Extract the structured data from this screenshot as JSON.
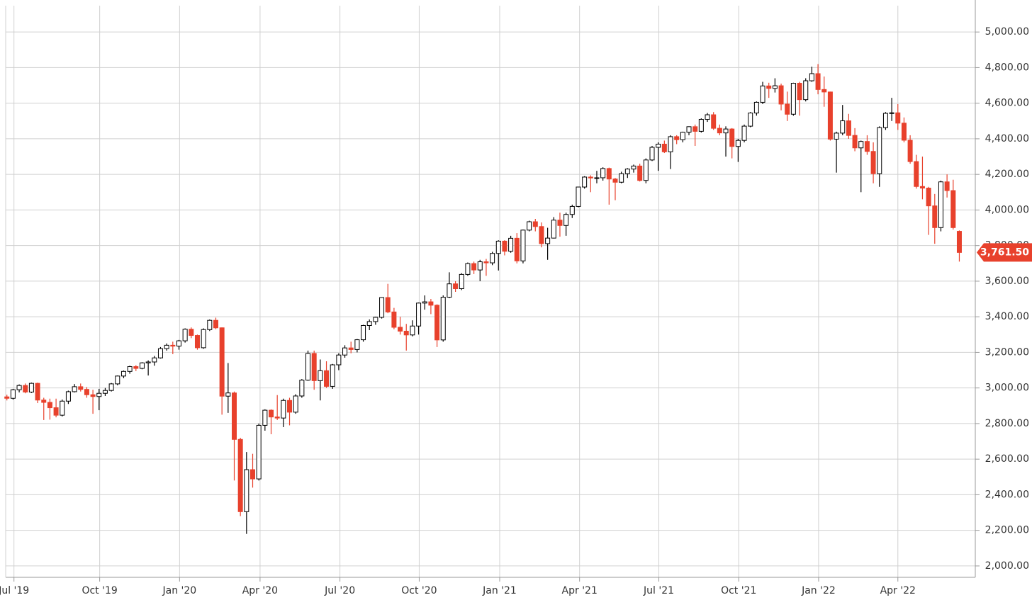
{
  "chart_data": {
    "type": "candlestick",
    "up_color": "#ffffff",
    "down_color": "#e8412c",
    "grid": true,
    "xlim": [
      -0.2,
      157.6
    ],
    "xticks": [
      {
        "value": 1.15,
        "label": "Jul '19"
      },
      {
        "value": 15.1,
        "label": "Oct '19"
      },
      {
        "value": 28.1,
        "label": "Jan '20"
      },
      {
        "value": 41.2,
        "label": "Apr '20"
      },
      {
        "value": 54.2,
        "label": "Jul '20"
      },
      {
        "value": 67.1,
        "label": "Oct '20"
      },
      {
        "value": 80.2,
        "label": "Jan '21"
      },
      {
        "value": 93.2,
        "label": "Apr '21"
      },
      {
        "value": 106.1,
        "label": "Jul '21"
      },
      {
        "value": 119.1,
        "label": "Oct '21"
      },
      {
        "value": 132.1,
        "label": "Jan '22"
      },
      {
        "value": 145,
        "label": "Apr '22"
      }
    ],
    "ylim": [
      1936,
      5148
    ],
    "yticks": [
      {
        "value": 2000,
        "label": "2,000.00"
      },
      {
        "value": 2200,
        "label": "2,200.00"
      },
      {
        "value": 2400,
        "label": "2,400.00"
      },
      {
        "value": 2600,
        "label": "2,600.00"
      },
      {
        "value": 2800,
        "label": "2,800.00"
      },
      {
        "value": 3000,
        "label": "3,000.00"
      },
      {
        "value": 3200,
        "label": "3,200.00"
      },
      {
        "value": 3400,
        "label": "3,400.00"
      },
      {
        "value": 3600,
        "label": "3,600.00"
      },
      {
        "value": 3800,
        "label": "3,800.00"
      },
      {
        "value": 4000,
        "label": "4,000.00"
      },
      {
        "value": 4200,
        "label": "4,200.00"
      },
      {
        "value": 4400,
        "label": "4,400.00"
      },
      {
        "value": 4600,
        "label": "4,600.00"
      },
      {
        "value": 4800,
        "label": "4,800.00"
      },
      {
        "value": 5000,
        "label": "5,000.00"
      }
    ],
    "last_price": {
      "value": 3761.5,
      "label": "3,761.50"
    },
    "ohlc": [
      [
        2950,
        2962,
        2930,
        2942
      ],
      [
        2942,
        2995,
        2935,
        2990
      ],
      [
        2990,
        3020,
        2975,
        3014
      ],
      [
        3014,
        3025,
        2970,
        2977
      ],
      [
        2977,
        3030,
        2972,
        3026
      ],
      [
        3026,
        3030,
        2915,
        2932
      ],
      [
        2932,
        2945,
        2820,
        2919
      ],
      [
        2919,
        2940,
        2822,
        2889
      ],
      [
        2889,
        2940,
        2835,
        2847
      ],
      [
        2847,
        2935,
        2840,
        2926
      ],
      [
        2926,
        2985,
        2910,
        2979
      ],
      [
        2979,
        3022,
        2975,
        3007
      ],
      [
        3007,
        3025,
        2980,
        2992
      ],
      [
        2992,
        3005,
        2945,
        2962
      ],
      [
        2962,
        2990,
        2855,
        2952
      ],
      [
        2952,
        2995,
        2875,
        2970
      ],
      [
        2970,
        3000,
        2955,
        2986
      ],
      [
        2986,
        3028,
        2980,
        3023
      ],
      [
        3023,
        3070,
        3015,
        3067
      ],
      [
        3067,
        3098,
        3055,
        3093
      ],
      [
        3093,
        3125,
        3080,
        3120
      ],
      [
        3120,
        3128,
        3095,
        3110
      ],
      [
        3110,
        3145,
        3105,
        3141
      ],
      [
        3141,
        3155,
        3070,
        3146
      ],
      [
        3146,
        3180,
        3125,
        3169
      ],
      [
        3169,
        3230,
        3165,
        3221
      ],
      [
        3221,
        3250,
        3210,
        3240
      ],
      [
        3240,
        3260,
        3190,
        3235
      ],
      [
        3235,
        3270,
        3215,
        3265
      ],
      [
        3265,
        3335,
        3255,
        3330
      ],
      [
        3330,
        3340,
        3280,
        3295
      ],
      [
        3295,
        3300,
        3215,
        3226
      ],
      [
        3226,
        3335,
        3220,
        3328
      ],
      [
        3328,
        3385,
        3320,
        3380
      ],
      [
        3380,
        3395,
        3330,
        3338
      ],
      [
        3338,
        3340,
        2850,
        2954
      ],
      [
        2954,
        3140,
        2860,
        2972
      ],
      [
        2972,
        2980,
        2480,
        2711
      ],
      [
        2711,
        2720,
        2280,
        2305
      ],
      [
        2305,
        2640,
        2180,
        2541
      ],
      [
        2541,
        2630,
        2440,
        2489
      ],
      [
        2489,
        2800,
        2480,
        2790
      ],
      [
        2790,
        2880,
        2760,
        2875
      ],
      [
        2875,
        2880,
        2740,
        2837
      ],
      [
        2837,
        2960,
        2820,
        2831
      ],
      [
        2831,
        2940,
        2780,
        2930
      ],
      [
        2930,
        2945,
        2790,
        2864
      ],
      [
        2864,
        2965,
        2855,
        2955
      ],
      [
        2955,
        3050,
        2945,
        3044
      ],
      [
        3044,
        3210,
        3040,
        3194
      ],
      [
        3194,
        3210,
        2990,
        3041
      ],
      [
        3041,
        3160,
        2930,
        3097
      ],
      [
        3097,
        3150,
        3000,
        3009
      ],
      [
        3009,
        3135,
        2995,
        3130
      ],
      [
        3130,
        3195,
        3100,
        3185
      ],
      [
        3185,
        3240,
        3170,
        3225
      ],
      [
        3225,
        3260,
        3195,
        3216
      ],
      [
        3216,
        3275,
        3200,
        3271
      ],
      [
        3271,
        3355,
        3260,
        3351
      ],
      [
        3351,
        3385,
        3325,
        3373
      ],
      [
        3373,
        3400,
        3355,
        3397
      ],
      [
        3397,
        3510,
        3390,
        3508
      ],
      [
        3508,
        3585,
        3420,
        3427
      ],
      [
        3427,
        3450,
        3330,
        3341
      ],
      [
        3341,
        3400,
        3300,
        3319
      ],
      [
        3319,
        3360,
        3210,
        3298
      ],
      [
        3298,
        3380,
        3290,
        3348
      ],
      [
        3348,
        3480,
        3300,
        3477
      ],
      [
        3477,
        3520,
        3440,
        3484
      ],
      [
        3484,
        3500,
        3415,
        3465
      ],
      [
        3465,
        3470,
        3230,
        3270
      ],
      [
        3270,
        3520,
        3260,
        3510
      ],
      [
        3510,
        3650,
        3505,
        3585
      ],
      [
        3585,
        3600,
        3540,
        3558
      ],
      [
        3558,
        3645,
        3550,
        3638
      ],
      [
        3638,
        3705,
        3630,
        3699
      ],
      [
        3699,
        3710,
        3640,
        3663
      ],
      [
        3663,
        3720,
        3600,
        3709
      ],
      [
        3709,
        3725,
        3630,
        3703
      ],
      [
        3703,
        3765,
        3690,
        3756
      ],
      [
        3756,
        3830,
        3660,
        3825
      ],
      [
        3825,
        3830,
        3745,
        3768
      ],
      [
        3768,
        3855,
        3760,
        3841
      ],
      [
        3841,
        3870,
        3700,
        3714
      ],
      [
        3714,
        3890,
        3700,
        3887
      ],
      [
        3887,
        3940,
        3880,
        3934
      ],
      [
        3934,
        3950,
        3880,
        3907
      ],
      [
        3907,
        3930,
        3790,
        3811
      ],
      [
        3811,
        3900,
        3720,
        3842
      ],
      [
        3842,
        3960,
        3840,
        3943
      ],
      [
        3943,
        3985,
        3850,
        3913
      ],
      [
        3913,
        3985,
        3855,
        3975
      ],
      [
        3975,
        4030,
        3955,
        4020
      ],
      [
        4020,
        4130,
        4015,
        4129
      ],
      [
        4129,
        4190,
        4120,
        4185
      ],
      [
        4185,
        4195,
        4100,
        4180
      ],
      [
        4180,
        4220,
        4150,
        4181
      ],
      [
        4181,
        4240,
        4165,
        4233
      ],
      [
        4233,
        4238,
        4030,
        4174
      ],
      [
        4174,
        4180,
        4055,
        4156
      ],
      [
        4156,
        4215,
        4150,
        4204
      ],
      [
        4204,
        4235,
        4180,
        4230
      ],
      [
        4230,
        4255,
        4210,
        4247
      ],
      [
        4247,
        4260,
        4160,
        4166
      ],
      [
        4166,
        4290,
        4150,
        4281
      ],
      [
        4281,
        4360,
        4275,
        4352
      ],
      [
        4352,
        4380,
        4220,
        4370
      ],
      [
        4370,
        4390,
        4320,
        4327
      ],
      [
        4327,
        4420,
        4230,
        4412
      ],
      [
        4412,
        4420,
        4370,
        4395
      ],
      [
        4395,
        4440,
        4380,
        4437
      ],
      [
        4437,
        4470,
        4420,
        4468
      ],
      [
        4468,
        4480,
        4360,
        4442
      ],
      [
        4442,
        4515,
        4435,
        4509
      ],
      [
        4509,
        4545,
        4495,
        4535
      ],
      [
        4535,
        4550,
        4450,
        4459
      ],
      [
        4459,
        4480,
        4420,
        4433
      ],
      [
        4433,
        4470,
        4300,
        4455
      ],
      [
        4455,
        4460,
        4290,
        4357
      ],
      [
        4357,
        4400,
        4270,
        4391
      ],
      [
        4391,
        4480,
        4380,
        4471
      ],
      [
        4471,
        4550,
        4465,
        4545
      ],
      [
        4545,
        4610,
        4530,
        4605
      ],
      [
        4605,
        4720,
        4595,
        4697
      ],
      [
        4697,
        4715,
        4630,
        4683
      ],
      [
        4683,
        4740,
        4660,
        4698
      ],
      [
        4698,
        4710,
        4560,
        4595
      ],
      [
        4595,
        4665,
        4500,
        4538
      ],
      [
        4538,
        4715,
        4530,
        4712
      ],
      [
        4712,
        4720,
        4530,
        4620
      ],
      [
        4620,
        4740,
        4610,
        4726
      ],
      [
        4726,
        4805,
        4720,
        4766
      ],
      [
        4766,
        4820,
        4650,
        4677
      ],
      [
        4677,
        4750,
        4580,
        4663
      ],
      [
        4663,
        4665,
        4390,
        4398
      ],
      [
        4398,
        4440,
        4210,
        4432
      ],
      [
        4432,
        4590,
        4420,
        4501
      ],
      [
        4501,
        4540,
        4400,
        4419
      ],
      [
        4419,
        4460,
        4330,
        4349
      ],
      [
        4349,
        4390,
        4100,
        4385
      ],
      [
        4385,
        4420,
        4310,
        4329
      ],
      [
        4329,
        4380,
        4150,
        4204
      ],
      [
        4204,
        4470,
        4130,
        4463
      ],
      [
        4463,
        4550,
        4450,
        4543
      ],
      [
        4543,
        4630,
        4500,
        4546
      ],
      [
        4546,
        4595,
        4450,
        4488
      ],
      [
        4488,
        4520,
        4380,
        4392
      ],
      [
        4392,
        4420,
        4260,
        4272
      ],
      [
        4272,
        4310,
        4120,
        4132
      ],
      [
        4132,
        4300,
        4060,
        4123
      ],
      [
        4123,
        4130,
        3860,
        4023
      ],
      [
        4023,
        4090,
        3810,
        3901
      ],
      [
        3901,
        4165,
        3880,
        4158
      ],
      [
        4158,
        4200,
        4070,
        4109
      ],
      [
        4109,
        4170,
        3890,
        3901
      ],
      [
        3880,
        3885,
        3710,
        3761.5
      ]
    ]
  }
}
